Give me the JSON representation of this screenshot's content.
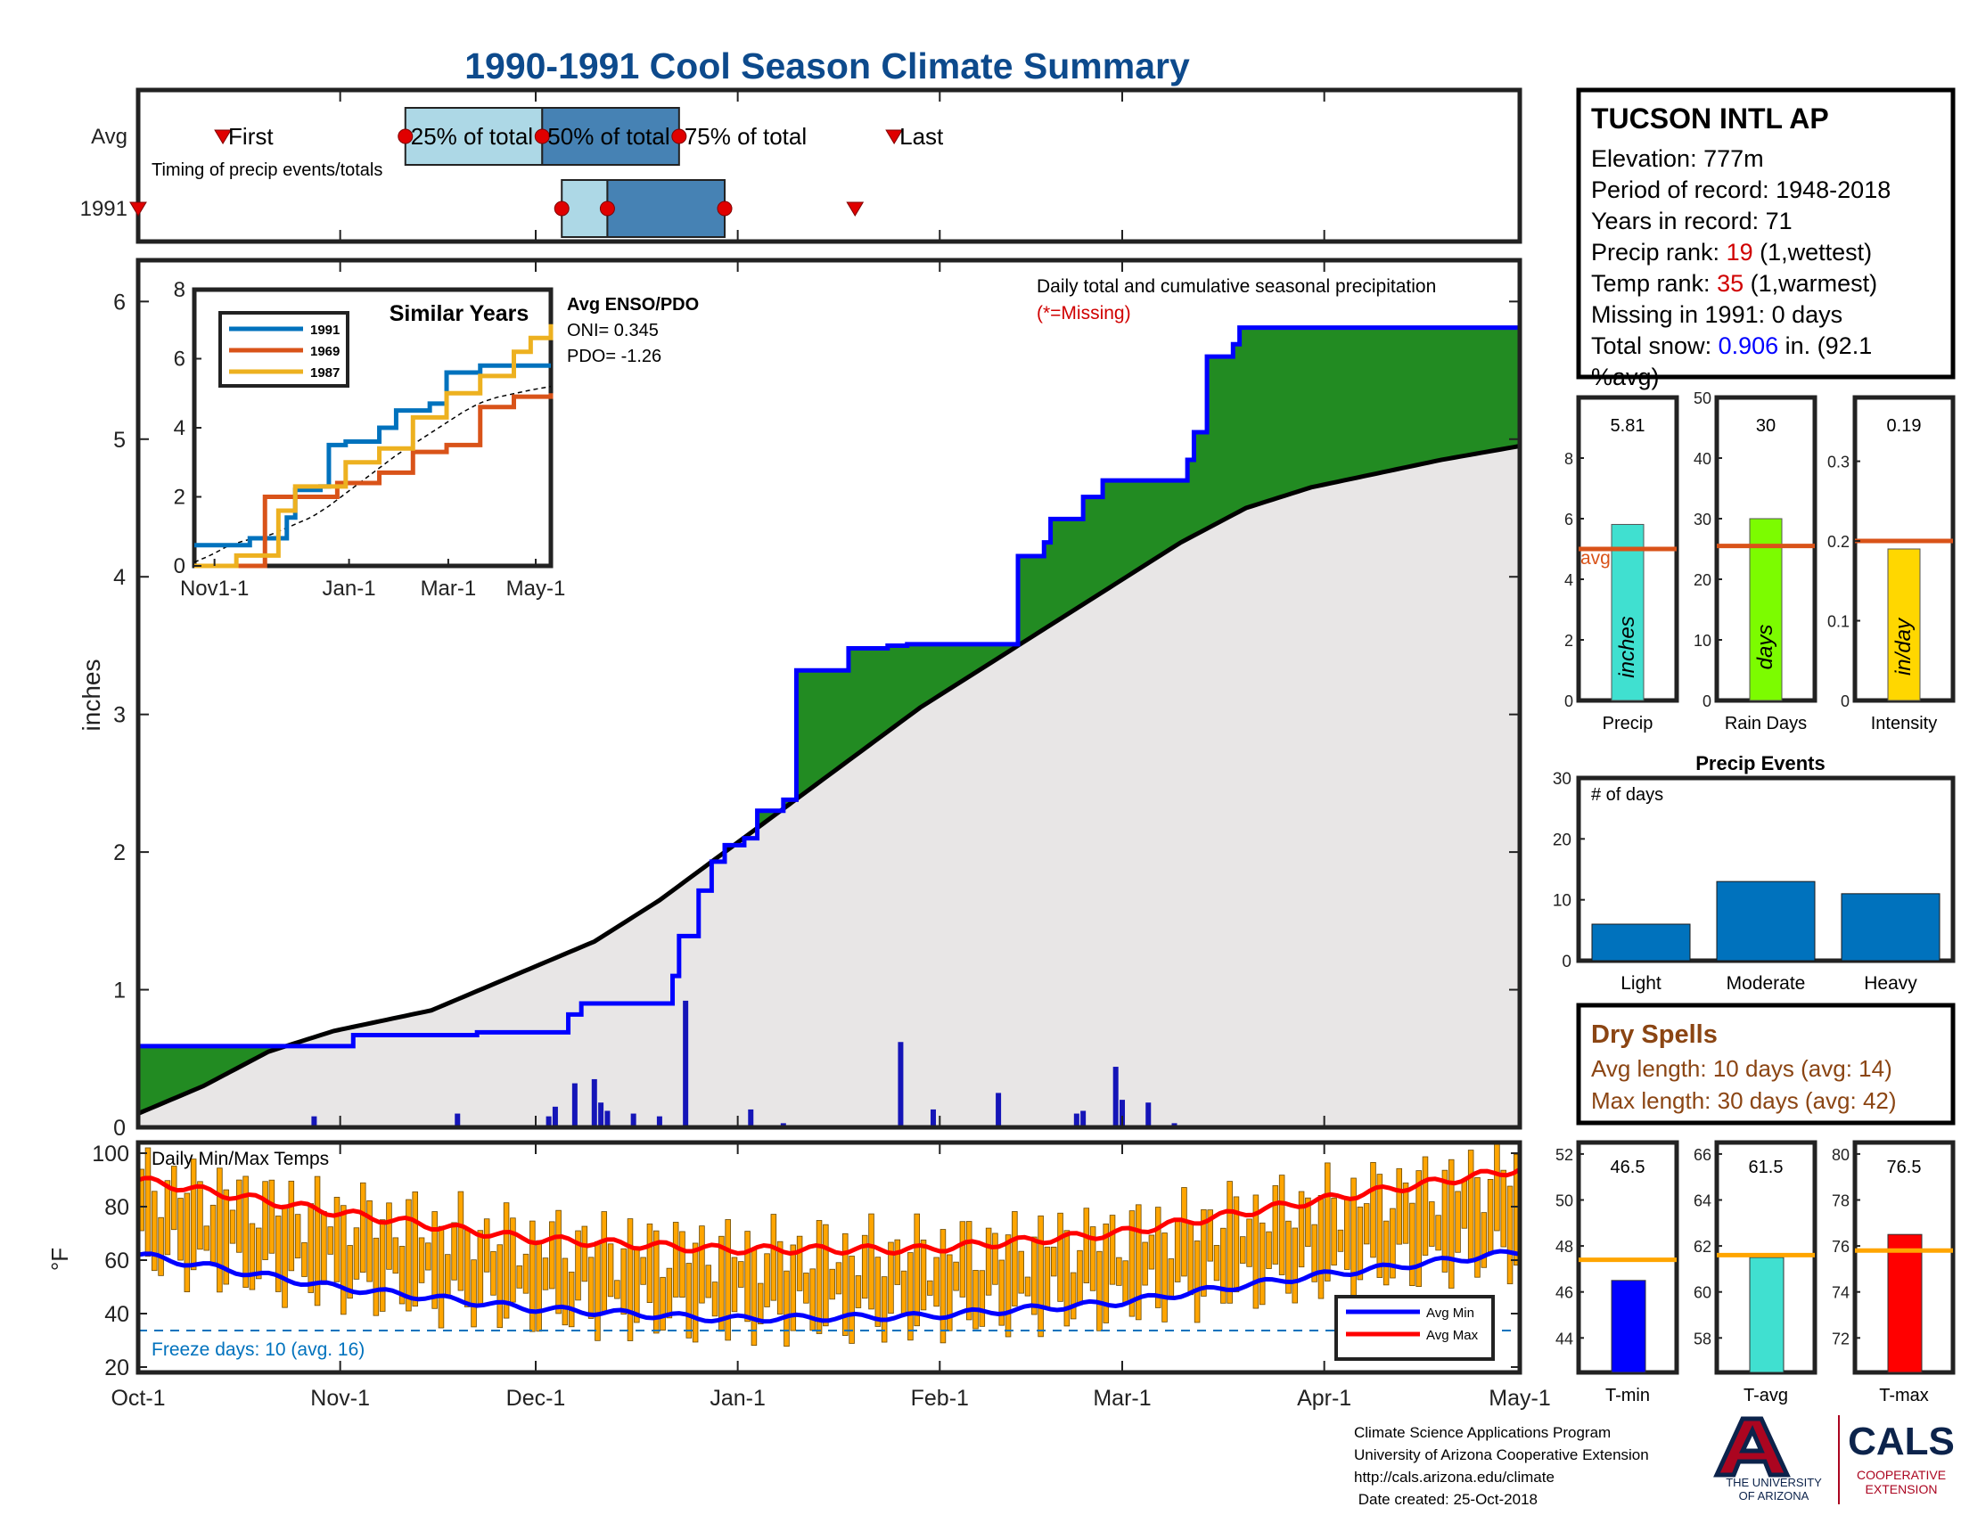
{
  "title": "1990-1991 Cool Season Climate Summary",
  "timing": {
    "row_labels": [
      "Avg",
      "1991"
    ],
    "note": "Timing of precip events/totals",
    "labels": {
      "first": "First",
      "p25": "25% of total",
      "p50": "50% of total",
      "p75": "75% of total",
      "last": "Last"
    },
    "avg": {
      "first": 13,
      "p25": 41,
      "p50": 62,
      "p75": 83,
      "last": 116
    },
    "y1991": {
      "first": 0,
      "p25": 65,
      "p50": 72,
      "p75": 90,
      "last": 110
    }
  },
  "station": {
    "name": "TUCSON INTL AP",
    "elevation": "Elevation: 777m",
    "period": "Period of record: 1948-2018",
    "years": "Years in record: 71",
    "precip_rank_prefix": "Precip rank: ",
    "precip_rank": "19",
    "precip_rank_suffix": " (1,wettest)",
    "temp_rank_prefix": "Temp rank: ",
    "temp_rank": "35",
    "temp_rank_suffix": " (1,warmest)",
    "missing": "Missing in 1991: 0 days",
    "snow_prefix": "Total snow: ",
    "snow_value": "0.906",
    "snow_suffix": " in. (92.1",
    "snow_line2": "%avg)"
  },
  "main_chart": {
    "ylabel": "inches",
    "yticks": [
      "0",
      "1",
      "2",
      "3",
      "4",
      "5",
      "6"
    ],
    "annotation": "Daily total and cumulative seasonal precipitation",
    "missing_note": "(*=Missing)",
    "enso_title": "Avg ENSO/PDO",
    "oni": "ONI= 0.345",
    "pdo": "PDO= -1.26"
  },
  "inset": {
    "title": "Similar Years",
    "yticks": [
      "0",
      "2",
      "4",
      "6",
      "8"
    ],
    "xticks": [
      "Nov1-1",
      "Jan-1",
      "Mar-1",
      "May-1"
    ],
    "legend": [
      "1991",
      "1969",
      "1987"
    ]
  },
  "temp_chart": {
    "ylabel": "°F",
    "yticks": [
      "20",
      "40",
      "60",
      "80",
      "100"
    ],
    "title": "Daily Min/Max Temps",
    "freeze": "Freeze days: 10 (avg. 16)",
    "legend": [
      "Avg Min",
      "Avg Max"
    ]
  },
  "x_axis": {
    "ticks": [
      "Oct-1",
      "Nov-1",
      "Dec-1",
      "Jan-1",
      "Feb-1",
      "Mar-1",
      "Apr-1",
      "May-1"
    ]
  },
  "bar_panels": [
    {
      "value_label": "5.81",
      "unit": "inches",
      "xlabel": "Precip",
      "yticks": [
        "0",
        "2",
        "4",
        "6",
        "8"
      ],
      "avg_label": "avg"
    },
    {
      "value_label": "30",
      "unit": "days",
      "xlabel": "Rain Days",
      "yticks": [
        "0",
        "10",
        "20",
        "30",
        "40",
        "50"
      ]
    },
    {
      "value_label": "0.19",
      "unit": "in/day",
      "xlabel": "Intensity",
      "yticks": [
        "0",
        "0.1",
        "0.2",
        "0.3"
      ]
    }
  ],
  "precip_events": {
    "title": "Precip Events",
    "ylabel": "# of days",
    "yticks": [
      "0",
      "10",
      "20",
      "30"
    ],
    "categories": [
      "Light",
      "Moderate",
      "Heavy"
    ]
  },
  "dry_spells": {
    "title": "Dry Spells",
    "avg": "Avg length: 10 days (avg: 14)",
    "max": "Max length: 30 days (avg: 42)"
  },
  "temp_panels": [
    {
      "value_label": "46.5",
      "xlabel": "T-min",
      "yticks": [
        "44",
        "46",
        "48",
        "50",
        "52"
      ]
    },
    {
      "value_label": "61.5",
      "xlabel": "T-avg",
      "yticks": [
        "58",
        "60",
        "62",
        "64",
        "66"
      ]
    },
    {
      "value_label": "76.5",
      "xlabel": "T-max",
      "yticks": [
        "72",
        "74",
        "76",
        "78",
        "80"
      ]
    }
  ],
  "footer": {
    "lines": [
      "Climate Science Applications Program",
      "University of Arizona Cooperative Extension",
      "http://cals.arizona.edu/climate",
      " Date created: 25-Oct-2018"
    ],
    "ua_text1": "THE UNIVERSITY",
    "ua_text2": "OF ARIZONA",
    "cals": "CALS",
    "coop1": "COOPERATIVE",
    "coop2": "EXTENSION"
  },
  "colors": {
    "above_avg": "#228B22",
    "below_avg": "#B8860B",
    "observed": "#0000FF",
    "average": "#000000",
    "temp_bars": "#FFA500",
    "avg_max": "#FF0000",
    "avg_min": "#0000FF",
    "precip_bar": "#40E0D0",
    "raindays_bar": "#7CFC00",
    "intensity_bar": "#FFD700",
    "events_bar": "#0072BD",
    "avg_line": "#D95319"
  },
  "chart_data": [
    {
      "type": "area",
      "title": "",
      "ylabel": "inches",
      "ylim": [
        0,
        6.3
      ],
      "x_unit": "days since Oct-1",
      "observed_cumulative": [
        [
          0,
          0.59
        ],
        [
          33,
          0.59
        ],
        [
          33,
          0.67
        ],
        [
          52,
          0.67
        ],
        [
          52,
          0.69
        ],
        [
          66,
          0.69
        ],
        [
          66,
          0.82
        ],
        [
          76,
          0.82
        ],
        [
          76,
          0.9
        ],
        [
          68,
          0.9
        ],
        [
          82,
          0.9
        ],
        [
          82,
          1.1
        ],
        [
          83,
          1.1
        ],
        [
          83,
          1.39
        ],
        [
          86,
          1.39
        ],
        [
          86,
          1.72
        ],
        [
          88,
          1.72
        ],
        [
          88,
          1.93
        ],
        [
          90,
          1.93
        ],
        [
          90,
          2.05
        ],
        [
          93,
          2.05
        ],
        [
          93,
          2.1
        ],
        [
          95,
          2.1
        ],
        [
          95,
          2.3
        ],
        [
          99,
          2.3
        ],
        [
          99,
          2.38
        ],
        [
          101,
          2.38
        ],
        [
          101,
          3.32
        ],
        [
          109,
          3.32
        ],
        [
          109,
          3.48
        ],
        [
          115,
          3.48
        ],
        [
          115,
          3.5
        ],
        [
          118,
          3.5
        ],
        [
          118,
          3.51
        ],
        [
          135,
          3.51
        ],
        [
          135,
          4.15
        ],
        [
          139,
          4.15
        ],
        [
          139,
          4.25
        ],
        [
          140,
          4.25
        ],
        [
          140,
          4.42
        ],
        [
          145,
          4.42
        ],
        [
          145,
          4.58
        ],
        [
          148,
          4.58
        ],
        [
          148,
          4.7
        ],
        [
          161,
          4.7
        ],
        [
          161,
          4.85
        ],
        [
          162,
          4.85
        ],
        [
          162,
          5.05
        ],
        [
          164,
          5.05
        ],
        [
          164,
          5.6
        ],
        [
          168,
          5.6
        ],
        [
          168,
          5.69
        ],
        [
          169,
          5.69
        ],
        [
          169,
          5.81
        ],
        [
          212,
          5.81
        ]
      ],
      "average_cumulative": [
        [
          0,
          0.1
        ],
        [
          10,
          0.3
        ],
        [
          20,
          0.55
        ],
        [
          30,
          0.7
        ],
        [
          45,
          0.85
        ],
        [
          60,
          1.15
        ],
        [
          70,
          1.35
        ],
        [
          80,
          1.65
        ],
        [
          90,
          2.0
        ],
        [
          100,
          2.35
        ],
        [
          110,
          2.7
        ],
        [
          120,
          3.05
        ],
        [
          130,
          3.35
        ],
        [
          140,
          3.65
        ],
        [
          150,
          3.95
        ],
        [
          160,
          4.25
        ],
        [
          170,
          4.5
        ],
        [
          180,
          4.65
        ],
        [
          190,
          4.75
        ],
        [
          200,
          4.85
        ],
        [
          212,
          4.95
        ]
      ],
      "daily_precip": [
        [
          27,
          0.08
        ],
        [
          49,
          0.1
        ],
        [
          63,
          0.08
        ],
        [
          64,
          0.15
        ],
        [
          67,
          0.32
        ],
        [
          70,
          0.35
        ],
        [
          71,
          0.18
        ],
        [
          72,
          0.12
        ],
        [
          76,
          0.1
        ],
        [
          80,
          0.08
        ],
        [
          84,
          0.92
        ],
        [
          94,
          0.13
        ],
        [
          99,
          0.03
        ],
        [
          117,
          0.62
        ],
        [
          122,
          0.13
        ],
        [
          132,
          0.25
        ],
        [
          144,
          0.1
        ],
        [
          145,
          0.12
        ],
        [
          150,
          0.44
        ],
        [
          151,
          0.2
        ],
        [
          155,
          0.18
        ],
        [
          159,
          0.03
        ]
      ],
      "x_ticks": [
        "Oct-1",
        "Nov-1",
        "Dec-1",
        "Jan-1",
        "Feb-1",
        "Mar-1",
        "Apr-1",
        "May-1"
      ]
    },
    {
      "type": "line",
      "title": "Similar Years",
      "ylim": [
        0,
        8
      ],
      "x_ticks": [
        "Nov1-1",
        "Jan-1",
        "Mar-1",
        "May-1"
      ],
      "series": [
        {
          "name": "1991",
          "points": [
            [
              0,
              0.6
            ],
            [
              30,
              0.6
            ],
            [
              33,
              0.8
            ],
            [
              55,
              1.4
            ],
            [
              60,
              2.2
            ],
            [
              75,
              2.3
            ],
            [
              80,
              3.5
            ],
            [
              90,
              3.6
            ],
            [
              100,
              3.6
            ],
            [
              110,
              4.0
            ],
            [
              120,
              4.5
            ],
            [
              140,
              4.7
            ],
            [
              150,
              5.6
            ],
            [
              170,
              5.8
            ],
            [
              212,
              5.8
            ]
          ]
        },
        {
          "name": "1969",
          "points": [
            [
              0,
              0
            ],
            [
              40,
              0
            ],
            [
              42,
              2.0
            ],
            [
              80,
              2.0
            ],
            [
              85,
              2.4
            ],
            [
              110,
              2.7
            ],
            [
              130,
              3.3
            ],
            [
              150,
              3.5
            ],
            [
              170,
              4.6
            ],
            [
              190,
              4.9
            ],
            [
              212,
              5.0
            ]
          ]
        },
        {
          "name": "1987",
          "points": [
            [
              0,
              0
            ],
            [
              25,
              0.3
            ],
            [
              50,
              1.6
            ],
            [
              60,
              2.3
            ],
            [
              90,
              3.0
            ],
            [
              110,
              3.4
            ],
            [
              130,
              4.3
            ],
            [
              150,
              5.0
            ],
            [
              170,
              5.5
            ],
            [
              190,
              6.2
            ],
            [
              200,
              6.6
            ],
            [
              212,
              7.0
            ]
          ]
        }
      ]
    },
    {
      "type": "bar",
      "title": "Daily Min/Max Temps",
      "ylabel": "°F",
      "ylim": [
        18,
        104
      ],
      "avg_max": [
        [
          0,
          90
        ],
        [
          30,
          78
        ],
        [
          60,
          68
        ],
        [
          90,
          64
        ],
        [
          120,
          64
        ],
        [
          150,
          70
        ],
        [
          180,
          82
        ],
        [
          212,
          94
        ]
      ],
      "avg_min": [
        [
          0,
          62
        ],
        [
          30,
          50
        ],
        [
          60,
          42
        ],
        [
          90,
          38
        ],
        [
          120,
          39
        ],
        [
          150,
          44
        ],
        [
          180,
          54
        ],
        [
          212,
          63
        ]
      ],
      "freeze_line": 32
    },
    {
      "type": "bar",
      "categories": [
        "Precip",
        "Rain Days",
        "Intensity"
      ],
      "series": [
        {
          "name": "1991",
          "values": [
            5.81,
            30,
            0.19
          ]
        },
        {
          "name": "avg",
          "values": [
            5.0,
            25.5,
            0.2
          ]
        }
      ],
      "ylims": [
        [
          0,
          10
        ],
        [
          0,
          50
        ],
        [
          0,
          0.38
        ]
      ]
    },
    {
      "type": "bar",
      "title": "Precip Events",
      "ylabel": "# of days",
      "categories": [
        "Light",
        "Moderate",
        "Heavy"
      ],
      "values": [
        6,
        13,
        11
      ],
      "ylim": [
        0,
        30
      ]
    },
    {
      "type": "bar",
      "categories": [
        "T-min",
        "T-avg",
        "T-max"
      ],
      "series": [
        {
          "name": "1991",
          "values": [
            46.5,
            61.5,
            76.5
          ]
        },
        {
          "name": "avg",
          "values": [
            47.4,
            61.6,
            75.8
          ]
        }
      ],
      "ylims": [
        [
          42.5,
          52.5
        ],
        [
          56.5,
          66.5
        ],
        [
          70.5,
          80.5
        ]
      ]
    }
  ]
}
